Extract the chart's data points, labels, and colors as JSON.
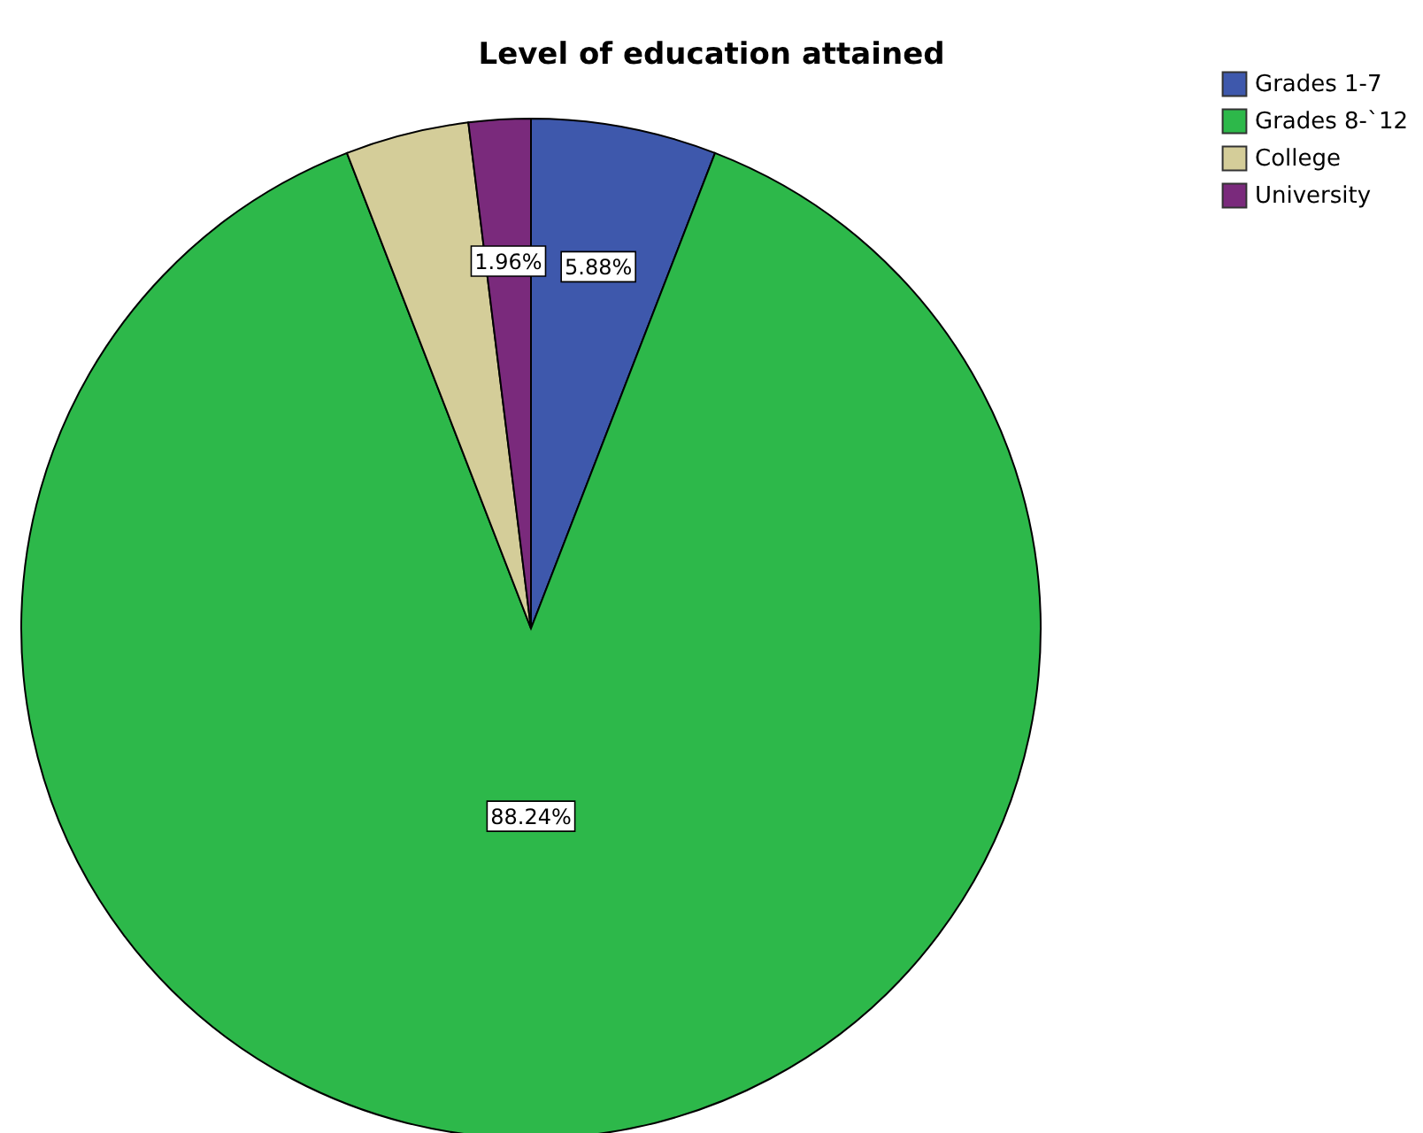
{
  "chart_data": {
    "type": "pie",
    "title": "Level of education attained",
    "categories": [
      "Grades 1-7",
      "Grades 8-`12",
      "College",
      "University"
    ],
    "values": [
      5.88,
      88.24,
      3.92,
      1.96
    ],
    "colors": [
      "#3e58ac",
      "#2db84a",
      "#d4cd99",
      "#7a2a7c"
    ],
    "value_labels": [
      "5.88%",
      "88.24%",
      null,
      "1.96%"
    ],
    "legend": "top right"
  }
}
